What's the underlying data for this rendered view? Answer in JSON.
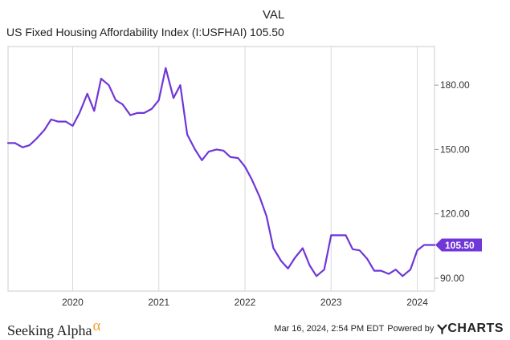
{
  "legend": {
    "header": "VAL",
    "series_name": "US Fixed Housing Affordability Index (I:USFHAI)",
    "series_value": "105.50"
  },
  "chart_data": {
    "type": "line",
    "title": "US Fixed Housing Affordability Index (I:USFHAI)",
    "xlabel": "",
    "ylabel": "",
    "ylim": [
      84,
      198
    ],
    "xlim": [
      2019.25,
      2024.2
    ],
    "x_ticks": [
      2020,
      2021,
      2022,
      2023,
      2024
    ],
    "x_tick_labels": [
      "2020",
      "2021",
      "2022",
      "2023",
      "2024"
    ],
    "y_ticks": [
      90,
      120,
      150,
      180
    ],
    "y_tick_labels": [
      "90.00",
      "120.00",
      "150.00",
      "180.00"
    ],
    "grid": "vertical",
    "color": "#6f36d8",
    "last_value_label": "105.50",
    "series": [
      {
        "name": "US Fixed Housing Affordability Index (I:USFHAI)",
        "x": [
          2019.25,
          2019.33,
          2019.42,
          2019.5,
          2019.58,
          2019.67,
          2019.75,
          2019.83,
          2019.92,
          2020.0,
          2020.08,
          2020.17,
          2020.25,
          2020.33,
          2020.42,
          2020.5,
          2020.58,
          2020.67,
          2020.75,
          2020.83,
          2020.92,
          2021.0,
          2021.08,
          2021.17,
          2021.25,
          2021.33,
          2021.42,
          2021.5,
          2021.58,
          2021.67,
          2021.75,
          2021.83,
          2021.92,
          2022.0,
          2022.08,
          2022.17,
          2022.25,
          2022.33,
          2022.42,
          2022.5,
          2022.58,
          2022.67,
          2022.75,
          2022.83,
          2022.92,
          2023.0,
          2023.08,
          2023.17,
          2023.25,
          2023.33,
          2023.42,
          2023.5,
          2023.58,
          2023.67,
          2023.75,
          2023.83,
          2023.92,
          2024.0,
          2024.08,
          2024.2
        ],
        "values": [
          153,
          153,
          151,
          152,
          155,
          159,
          164,
          163,
          163,
          161,
          167,
          176,
          168,
          183,
          180,
          173,
          171,
          166,
          167,
          167,
          169,
          173,
          188,
          174,
          180,
          157,
          150,
          145,
          149,
          150,
          149.5,
          146.5,
          146,
          142,
          136,
          128,
          119,
          104,
          98,
          94.5,
          99.5,
          104,
          96,
          91,
          94,
          110,
          110,
          110,
          103.5,
          103,
          99,
          93.5,
          93.5,
          92,
          94,
          91,
          94,
          103,
          105.5,
          105.5
        ]
      }
    ]
  },
  "footer": {
    "brand": "Seeking Alpha",
    "brand_symbol": "α",
    "timestamp": "Mar 16, 2024, 2:54 PM EDT",
    "powered_by": "Powered by",
    "provider": "YCHARTS"
  }
}
